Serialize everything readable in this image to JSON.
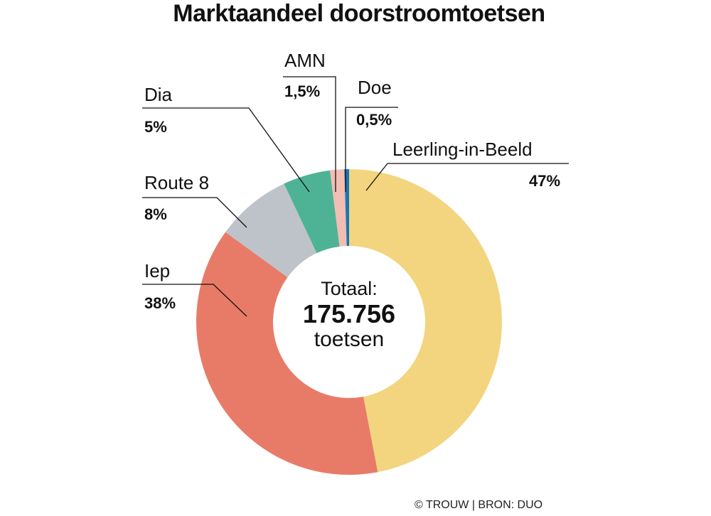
{
  "chart_data": {
    "type": "pie",
    "donut": true,
    "title": "Marktaandeel doorstroomtoetsen",
    "slices": [
      {
        "label": "Leerling-in-Beeld",
        "value": 47,
        "display": "47%",
        "color": "#F2D57E"
      },
      {
        "label": "Iep",
        "value": 38,
        "display": "38%",
        "color": "#E87B68"
      },
      {
        "label": "Route 8",
        "value": 8,
        "display": "8%",
        "color": "#BEC3C9"
      },
      {
        "label": "Dia",
        "value": 5,
        "display": "5%",
        "color": "#4DB394"
      },
      {
        "label": "AMN",
        "value": 1.5,
        "display": "1,5%",
        "color": "#F2BDB2"
      },
      {
        "label": "Doe",
        "value": 0.5,
        "display": "0,5%",
        "color": "#1A75B5"
      }
    ],
    "center": {
      "title": "Totaal:",
      "value": "175.756",
      "unit": "toetsen"
    },
    "start": "12 o'clock",
    "direction": "clockwise"
  },
  "source": "© TROUW | BRON: DUO"
}
